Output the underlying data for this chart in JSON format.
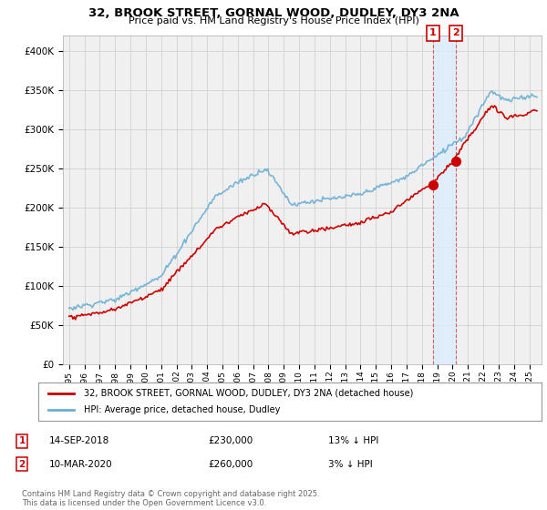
{
  "title_line1": "32, BROOK STREET, GORNAL WOOD, DUDLEY, DY3 2NA",
  "title_line2": "Price paid vs. HM Land Registry's House Price Index (HPI)",
  "legend_label1": "32, BROOK STREET, GORNAL WOOD, DUDLEY, DY3 2NA (detached house)",
  "legend_label2": "HPI: Average price, detached house, Dudley",
  "annotation1": {
    "num": "1",
    "date": "14-SEP-2018",
    "price": "£230,000",
    "hpi": "13% ↓ HPI"
  },
  "annotation2": {
    "num": "2",
    "date": "10-MAR-2020",
    "price": "£260,000",
    "hpi": "3% ↓ HPI"
  },
  "footnote": "Contains HM Land Registry data © Crown copyright and database right 2025.\nThis data is licensed under the Open Government Licence v3.0.",
  "hpi_color": "#6aaed6",
  "price_color": "#cc0000",
  "vline_color": "#cc0000",
  "shade_color": "#ddeeff",
  "background_color": "#f0f0f0",
  "plot_bg_color": "#f0f0f0",
  "ylim": [
    0,
    420000
  ],
  "yticks": [
    0,
    50000,
    100000,
    150000,
    200000,
    250000,
    300000,
    350000,
    400000
  ],
  "sale1_year": 2018.71,
  "sale1_price": 230000,
  "sale2_year": 2020.19,
  "sale2_price": 260000,
  "xstart": 1995,
  "xend": 2025.5
}
